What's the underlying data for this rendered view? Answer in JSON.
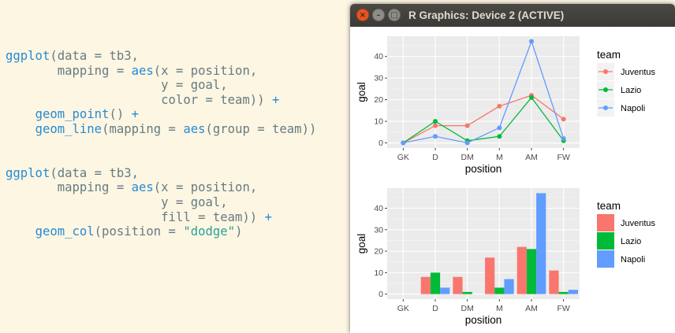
{
  "editor": {
    "lines": [
      [
        [
          "fn",
          "ggplot"
        ],
        [
          "txt",
          "(data = tb3,"
        ]
      ],
      [
        [
          "txt",
          "       mapping = "
        ],
        [
          "fn",
          "aes"
        ],
        [
          "txt",
          "(x = position,"
        ]
      ],
      [
        [
          "txt",
          "                     y = goal,"
        ]
      ],
      [
        [
          "txt",
          "                     color = team)) "
        ],
        [
          "op",
          "+"
        ]
      ],
      [
        [
          "txt",
          "    "
        ],
        [
          "fn",
          "geom_point"
        ],
        [
          "txt",
          "() "
        ],
        [
          "op",
          "+"
        ]
      ],
      [
        [
          "txt",
          "    "
        ],
        [
          "fn",
          "geom_line"
        ],
        [
          "txt",
          "(mapping = "
        ],
        [
          "fn",
          "aes"
        ],
        [
          "txt",
          "(group = team))"
        ]
      ],
      [],
      [],
      [
        [
          "fn",
          "ggplot"
        ],
        [
          "txt",
          "(data = tb3,"
        ]
      ],
      [
        [
          "txt",
          "       mapping = "
        ],
        [
          "fn",
          "aes"
        ],
        [
          "txt",
          "(x = position,"
        ]
      ],
      [
        [
          "txt",
          "                     y = goal,"
        ]
      ],
      [
        [
          "txt",
          "                     fill = team)) "
        ],
        [
          "op",
          "+"
        ]
      ],
      [
        [
          "txt",
          "    "
        ],
        [
          "fn",
          "geom_col"
        ],
        [
          "txt",
          "(position = "
        ],
        [
          "str",
          "\"dodge\""
        ],
        [
          "txt",
          ")"
        ]
      ]
    ]
  },
  "window": {
    "title": "R Graphics: Device 2 (ACTIVE)",
    "close_glyph": "×",
    "minimize_glyph": "–",
    "maximize_glyph": "□"
  },
  "colors": {
    "Juventus": "#f8766d",
    "Lazio": "#00ba38",
    "Napoli": "#619cff",
    "panel": "#ebebeb",
    "grid_major": "#ffffff",
    "grid_minor": "#f6f6f6"
  },
  "chart_data": [
    {
      "type": "line",
      "categories": [
        "GK",
        "D",
        "DM",
        "M",
        "AM",
        "FW"
      ],
      "series": [
        {
          "name": "Juventus",
          "values": [
            0,
            8,
            8,
            17,
            22,
            11
          ]
        },
        {
          "name": "Lazio",
          "values": [
            0,
            10,
            1,
            3,
            21,
            1
          ]
        },
        {
          "name": "Napoli",
          "values": [
            0,
            3,
            0,
            7,
            47,
            2
          ]
        }
      ],
      "xlabel": "position",
      "ylabel": "goal",
      "ylim": [
        -2.35,
        49.35
      ],
      "yticks": [
        0,
        10,
        20,
        30,
        40
      ],
      "legend_title": "team",
      "legend_position": "right",
      "grid": true
    },
    {
      "type": "bar",
      "categories": [
        "GK",
        "D",
        "DM",
        "M",
        "AM",
        "FW"
      ],
      "series": [
        {
          "name": "Juventus",
          "values": [
            0,
            8,
            8,
            17,
            22,
            11
          ]
        },
        {
          "name": "Lazio",
          "values": [
            0,
            10,
            1,
            3,
            21,
            1
          ]
        },
        {
          "name": "Napoli",
          "values": [
            0,
            3,
            0,
            7,
            47,
            2
          ]
        }
      ],
      "xlabel": "position",
      "ylabel": "goal",
      "ylim": [
        -2.35,
        49.35
      ],
      "yticks": [
        0,
        10,
        20,
        30,
        40
      ],
      "legend_title": "team",
      "legend_position": "right",
      "grid": true
    }
  ]
}
